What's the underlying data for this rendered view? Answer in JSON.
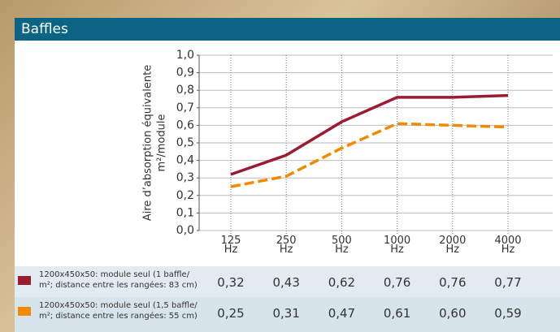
{
  "header": {
    "title": "Baffles"
  },
  "chart_data": {
    "type": "line",
    "y_label": [
      "Aire d’absorption équivalente",
      "m²/module"
    ],
    "categories": [
      "125 Hz",
      "250 Hz",
      "500 Hz",
      "1000 Hz",
      "2000 Hz",
      "4000 Hz"
    ],
    "ylim": [
      0,
      1
    ],
    "yticks": [
      {
        "value": 0,
        "label": "0,0"
      },
      {
        "value": 0.1,
        "label": "0,1"
      },
      {
        "value": 0.2,
        "label": "0,2"
      },
      {
        "value": 0.3,
        "label": "0,3"
      },
      {
        "value": 0.4,
        "label": "0,4"
      },
      {
        "value": 0.5,
        "label": "0,5"
      },
      {
        "value": 0.6,
        "label": "0,6"
      },
      {
        "value": 0.7,
        "label": "0,7"
      },
      {
        "value": 0.8,
        "label": "0,8"
      },
      {
        "value": 0.9,
        "label": "0,9"
      },
      {
        "value": 1,
        "label": "1,0"
      }
    ],
    "grid": true,
    "series": [
      {
        "name": "1200x450x50: module seul (1 baffle/ m²; distance entre les rangées: 83 cm)",
        "color": "#9b1b30",
        "dashed": false,
        "values": [
          0.32,
          0.43,
          0.62,
          0.76,
          0.76,
          0.77
        ],
        "value_labels": [
          "0,32",
          "0,43",
          "0,62",
          "0,76",
          "0,76",
          "0,77"
        ]
      },
      {
        "name": "1200x450x50: module seul (1,5 baffle/ m²; distance entre les rangées: 55 cm)",
        "color": "#f08a00",
        "dashed": true,
        "values": [
          0.25,
          0.31,
          0.47,
          0.61,
          0.6,
          0.59
        ],
        "value_labels": [
          "0,25",
          "0,31",
          "0,47",
          "0,61",
          "0,60",
          "0,59"
        ]
      }
    ]
  }
}
